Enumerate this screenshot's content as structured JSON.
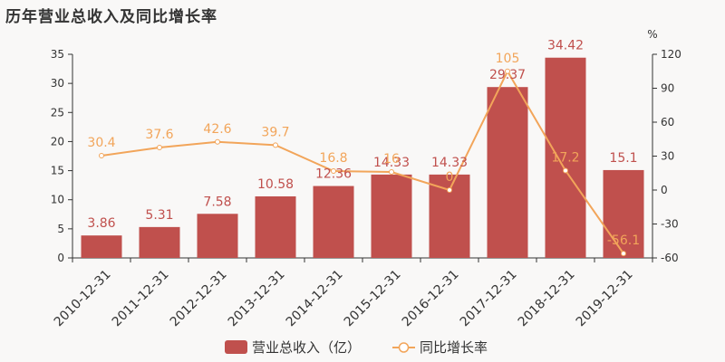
{
  "title": "历年营业总收入及同比增长率",
  "colors": {
    "bar": "#c0504d",
    "line": "#f2a55a",
    "bar_label": "#c0504d",
    "line_label": "#f2a55a",
    "axis": "#333333"
  },
  "chart_data": {
    "type": "bar",
    "categories": [
      "2010-12-31",
      "2011-12-31",
      "2012-12-31",
      "2013-12-31",
      "2014-12-31",
      "2015-12-31",
      "2016-12-31",
      "2017-12-31",
      "2018-12-31",
      "2019-12-31"
    ],
    "series": [
      {
        "name": "营业总收入（亿）",
        "type": "bar",
        "axis": "left",
        "values": [
          3.86,
          5.31,
          7.58,
          10.58,
          12.36,
          14.33,
          14.33,
          29.37,
          34.42,
          15.1
        ],
        "labels": [
          "3.86",
          "5.31",
          "7.58",
          "10.58",
          "12.36",
          "14.33",
          "14.33",
          "29.37",
          "34.42",
          "15.1"
        ]
      },
      {
        "name": "同比增长率",
        "type": "line",
        "axis": "right",
        "values": [
          30.4,
          37.6,
          42.6,
          39.7,
          16.8,
          16,
          0,
          105,
          17.2,
          -56.1
        ],
        "labels": [
          "30.4",
          "37.6",
          "42.6",
          "39.7",
          "16.8",
          "16",
          "0",
          "105",
          "17.2",
          "-56.1"
        ]
      }
    ],
    "y_left": {
      "min": 0,
      "max": 35,
      "ticks": [
        "0",
        "5",
        "10",
        "15",
        "20",
        "25",
        "30",
        "35"
      ]
    },
    "y_right": {
      "min": -60,
      "max": 120,
      "unit": "%",
      "ticks": [
        "-60",
        "-30",
        "0",
        "30",
        "60",
        "90",
        "120"
      ]
    },
    "legend": {
      "placement": "bottom-center"
    },
    "grid": false
  }
}
